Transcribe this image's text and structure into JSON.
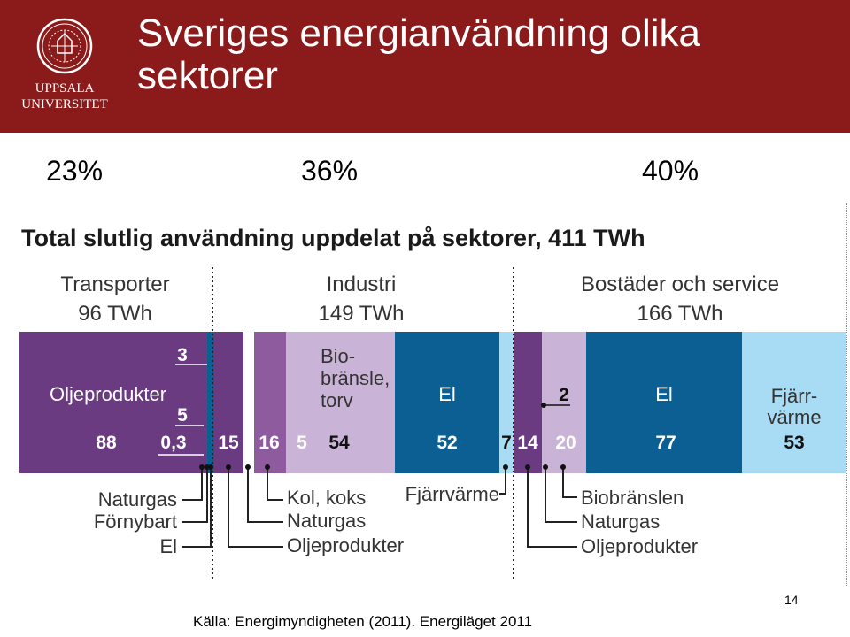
{
  "header": {
    "logo_text_1": "UPPSALA",
    "logo_text_2": "UNIVERSITET",
    "title": "Sveriges energianvändning olika sektorer"
  },
  "percentages": [
    "23%",
    "36%",
    "40%"
  ],
  "footer": {
    "source": "Källa: Energimyndigheten (2011). Energiläget 2011",
    "page_number": "14"
  },
  "colors": {
    "header_bg": "#8b1a1a",
    "oil_purple": "#6a3b80",
    "mid_purple": "#8e5c9e",
    "light_purple": "#c9b3d6",
    "dark_blue": "#0b5f93",
    "light_blue": "#a8dbf4"
  },
  "chart_data": {
    "type": "bar",
    "title": "Total slutlig användning uppdelat på sektorer, 411 TWh",
    "sectors": [
      {
        "name": "Transporter",
        "total": "96 TWh"
      },
      {
        "name": "Industri",
        "total": "149 TWh"
      },
      {
        "name": "Bostäder och service",
        "total": "166 TWh"
      }
    ],
    "segments": [
      {
        "sector": "Transporter",
        "category": "Oljeprodukter",
        "value": 88,
        "label": "88",
        "color": "#6a3b80"
      },
      {
        "sector": "Transporter",
        "category": "Naturgas",
        "value": 0.3,
        "label": "0,3",
        "color": "#6a3b80"
      },
      {
        "sector": "Transporter",
        "category": "Förnybart",
        "value": 5,
        "label": "5",
        "color": "#6a3b80"
      },
      {
        "sector": "Transporter",
        "category": "El",
        "value": 3,
        "label": "3",
        "color": "#0b5f93"
      },
      {
        "sector": "Industri",
        "category": "Oljeprodukter",
        "value": 15,
        "label": "15",
        "color": "#6a3b80"
      },
      {
        "sector": "Industri",
        "category": "Naturgas",
        "value": 5,
        "label": "5",
        "color": "#ffffff"
      },
      {
        "sector": "Industri",
        "category": "Kol, koks",
        "value": 16,
        "label": "16",
        "color": "#8e5c9e"
      },
      {
        "sector": "Industri",
        "category": "Biobränsle, torv",
        "value": 54,
        "label": "54",
        "color": "#c9b3d6"
      },
      {
        "sector": "Industri",
        "category": "El",
        "value": 52,
        "label": "52",
        "color": "#0b5f93"
      },
      {
        "sector": "Industri",
        "category": "Fjärrvärme",
        "value": 7,
        "label": "7",
        "color": "#a8dbf4"
      },
      {
        "sector": "Bostäder och service",
        "category": "Oljeprodukter",
        "value": 14,
        "label": "14",
        "color": "#6a3b80"
      },
      {
        "sector": "Bostäder och service",
        "category": "Naturgas",
        "value": 2,
        "label": "2",
        "color": "#c9b3d6"
      },
      {
        "sector": "Bostäder och service",
        "category": "Biobränslen",
        "value": 20,
        "label": "20",
        "color": "#c9b3d6"
      },
      {
        "sector": "Bostäder och service",
        "category": "El",
        "value": 77,
        "label": "77",
        "color": "#0b5f93"
      },
      {
        "sector": "Bostäder och service",
        "category": "Fjärrvärme",
        "value": 53,
        "label": "53",
        "color": "#a8dbf4"
      }
    ],
    "in_bar_labels": {
      "oljeprodukter": "Oljeprodukter",
      "bio_line1": "Bio-",
      "bio_line2": "bränsle,",
      "bio_line3": "torv",
      "el_industri": "El",
      "el_bostader": "El",
      "fjarr_line1": "Fjärr-",
      "fjarr_line2": "värme"
    },
    "callouts": [
      "Naturgas",
      "Förnybart",
      "El",
      "Kol, koks",
      "Naturgas",
      "Oljeprodukter",
      "Fjärrvärme",
      "Biobränslen",
      "Naturgas",
      "Oljeprodukter"
    ]
  }
}
